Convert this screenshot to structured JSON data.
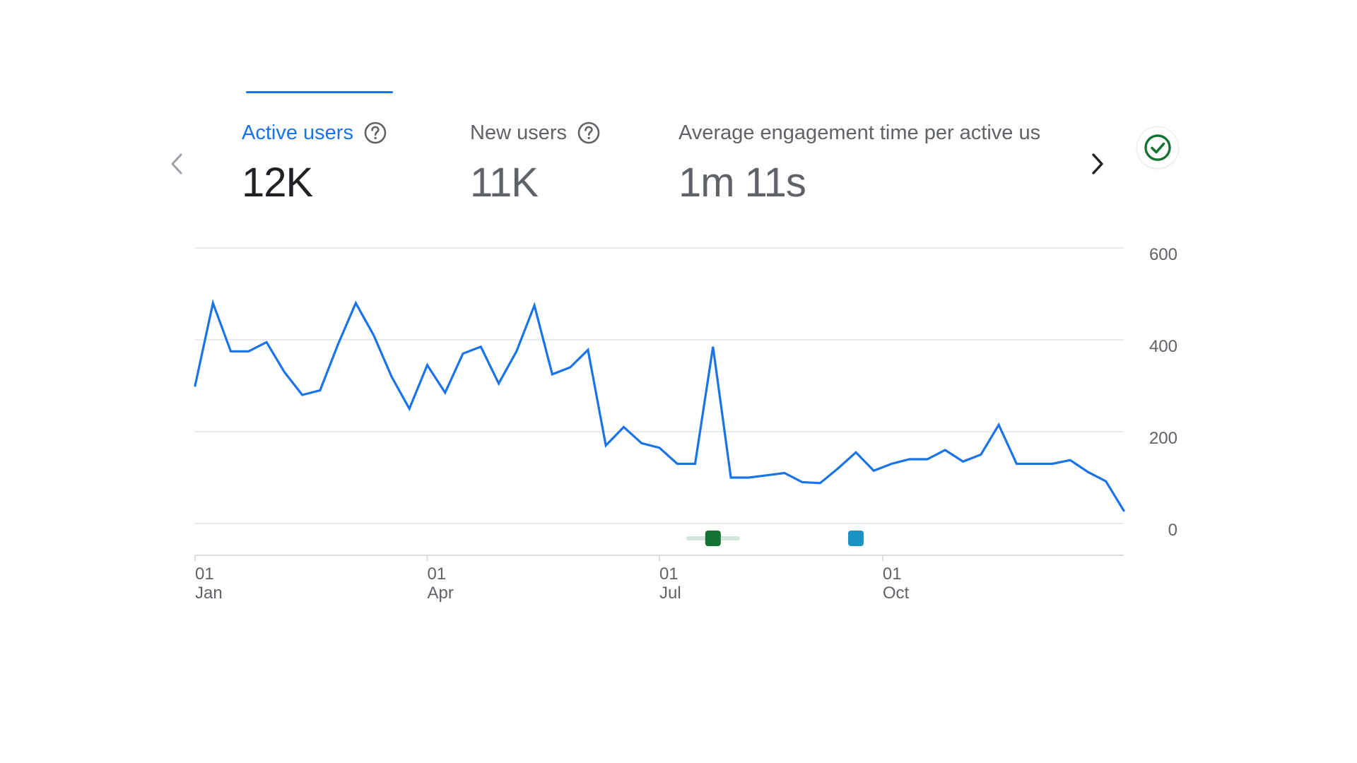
{
  "metrics": [
    {
      "label": "Active users",
      "value": "12K"
    },
    {
      "label": "New users",
      "value": "11K"
    },
    {
      "label": "Average engagement time per active us",
      "value": "1m 11s"
    }
  ],
  "icons": {
    "prev": "chevron-left-icon",
    "next": "chevron-right-icon",
    "help": "help-circle-icon",
    "status": "check-circle-icon"
  },
  "colors": {
    "accent": "#1a73e8",
    "line": "#1a73e8",
    "status_ok": "#137333",
    "annotation_1": "#137333",
    "annotation_2": "#1a94c4"
  },
  "chart_data": {
    "type": "line",
    "series": [
      {
        "values": [
          300,
          480,
          375,
          375,
          395,
          330,
          280,
          290,
          390,
          480,
          410,
          320,
          250,
          345,
          285,
          370,
          385,
          305,
          375,
          475,
          325,
          340,
          378,
          170,
          210,
          175,
          165,
          130,
          130,
          385,
          100,
          100,
          105,
          110,
          90,
          88,
          120,
          155,
          115,
          130,
          140,
          140,
          160,
          135,
          150,
          215,
          130,
          130,
          130,
          138,
          112,
          92,
          28
        ]
      }
    ],
    "ylim": [
      0,
      600
    ],
    "yticks": [
      "0",
      "200",
      "400",
      "600"
    ],
    "xticks": [
      {
        "day": "01",
        "month": "Jan"
      },
      {
        "day": "01",
        "month": "Apr"
      },
      {
        "day": "01",
        "month": "Jul"
      },
      {
        "day": "01",
        "month": "Oct"
      }
    ],
    "grid": true,
    "annotations": [
      {
        "week": 29,
        "color": "#137333",
        "has_range": true
      },
      {
        "week": 37,
        "color": "#1a94c4",
        "has_range": false
      }
    ]
  }
}
